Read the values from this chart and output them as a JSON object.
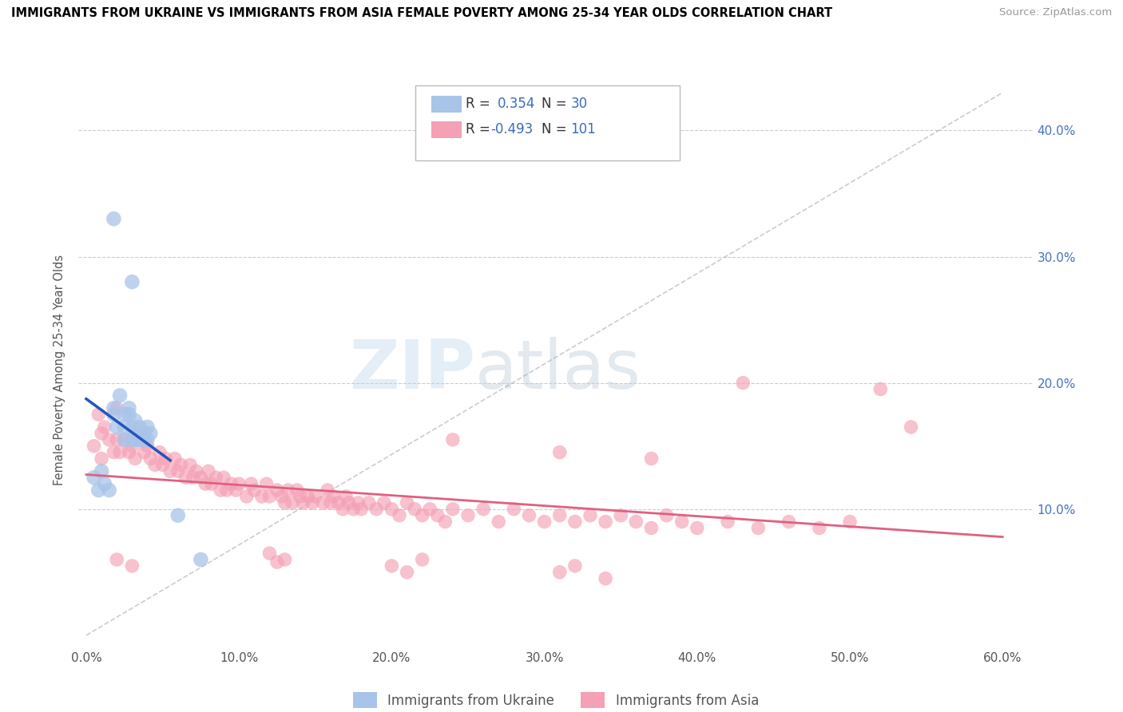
{
  "title": "IMMIGRANTS FROM UKRAINE VS IMMIGRANTS FROM ASIA FEMALE POVERTY AMONG 25-34 YEAR OLDS CORRELATION CHART",
  "source": "Source: ZipAtlas.com",
  "ylabel": "Female Poverty Among 25-34 Year Olds",
  "ytick_vals": [
    0.0,
    0.1,
    0.2,
    0.3,
    0.4
  ],
  "ytick_labels": [
    "",
    "10.0%",
    "20.0%",
    "30.0%",
    "40.0%"
  ],
  "xtick_vals": [
    0.0,
    0.1,
    0.2,
    0.3,
    0.4,
    0.5,
    0.6
  ],
  "xtick_labels": [
    "0.0%",
    "10.0%",
    "20.0%",
    "30.0%",
    "40.0%",
    "50.0%",
    "60.0%"
  ],
  "xlim": [
    -0.005,
    0.62
  ],
  "ylim": [
    -0.01,
    0.43
  ],
  "color_ukraine": "#a8c4e8",
  "color_asia": "#f4a0b5",
  "color_ukraine_line": "#2255bb",
  "color_asia_line": "#e06080",
  "color_diagonal": "#aaaaaa",
  "watermark_zip": "ZIP",
  "watermark_atlas": "atlas",
  "ukraine_scatter": [
    [
      0.005,
      0.125
    ],
    [
      0.008,
      0.115
    ],
    [
      0.01,
      0.13
    ],
    [
      0.012,
      0.12
    ],
    [
      0.015,
      0.115
    ],
    [
      0.018,
      0.18
    ],
    [
      0.018,
      0.175
    ],
    [
      0.02,
      0.165
    ],
    [
      0.022,
      0.19
    ],
    [
      0.025,
      0.175
    ],
    [
      0.025,
      0.165
    ],
    [
      0.025,
      0.155
    ],
    [
      0.028,
      0.18
    ],
    [
      0.028,
      0.175
    ],
    [
      0.03,
      0.165
    ],
    [
      0.03,
      0.155
    ],
    [
      0.032,
      0.17
    ],
    [
      0.033,
      0.16
    ],
    [
      0.033,
      0.155
    ],
    [
      0.035,
      0.165
    ],
    [
      0.035,
      0.155
    ],
    [
      0.038,
      0.16
    ],
    [
      0.038,
      0.155
    ],
    [
      0.04,
      0.165
    ],
    [
      0.04,
      0.155
    ],
    [
      0.042,
      0.16
    ],
    [
      0.03,
      0.28
    ],
    [
      0.018,
      0.33
    ],
    [
      0.06,
      0.095
    ],
    [
      0.075,
      0.06
    ]
  ],
  "asia_scatter": [
    [
      0.005,
      0.15
    ],
    [
      0.008,
      0.175
    ],
    [
      0.01,
      0.16
    ],
    [
      0.012,
      0.165
    ],
    [
      0.015,
      0.155
    ],
    [
      0.018,
      0.145
    ],
    [
      0.02,
      0.155
    ],
    [
      0.022,
      0.145
    ],
    [
      0.025,
      0.155
    ],
    [
      0.028,
      0.145
    ],
    [
      0.03,
      0.15
    ],
    [
      0.032,
      0.14
    ],
    [
      0.035,
      0.155
    ],
    [
      0.038,
      0.145
    ],
    [
      0.04,
      0.15
    ],
    [
      0.042,
      0.14
    ],
    [
      0.045,
      0.135
    ],
    [
      0.048,
      0.145
    ],
    [
      0.05,
      0.135
    ],
    [
      0.052,
      0.14
    ],
    [
      0.055,
      0.13
    ],
    [
      0.058,
      0.14
    ],
    [
      0.06,
      0.13
    ],
    [
      0.062,
      0.135
    ],
    [
      0.065,
      0.125
    ],
    [
      0.068,
      0.135
    ],
    [
      0.07,
      0.125
    ],
    [
      0.072,
      0.13
    ],
    [
      0.075,
      0.125
    ],
    [
      0.078,
      0.12
    ],
    [
      0.08,
      0.13
    ],
    [
      0.082,
      0.12
    ],
    [
      0.085,
      0.125
    ],
    [
      0.088,
      0.115
    ],
    [
      0.09,
      0.125
    ],
    [
      0.092,
      0.115
    ],
    [
      0.095,
      0.12
    ],
    [
      0.098,
      0.115
    ],
    [
      0.1,
      0.12
    ],
    [
      0.105,
      0.11
    ],
    [
      0.108,
      0.12
    ],
    [
      0.11,
      0.115
    ],
    [
      0.115,
      0.11
    ],
    [
      0.118,
      0.12
    ],
    [
      0.12,
      0.11
    ],
    [
      0.125,
      0.115
    ],
    [
      0.128,
      0.11
    ],
    [
      0.13,
      0.105
    ],
    [
      0.132,
      0.115
    ],
    [
      0.135,
      0.105
    ],
    [
      0.138,
      0.115
    ],
    [
      0.14,
      0.11
    ],
    [
      0.142,
      0.105
    ],
    [
      0.145,
      0.11
    ],
    [
      0.148,
      0.105
    ],
    [
      0.15,
      0.11
    ],
    [
      0.155,
      0.105
    ],
    [
      0.158,
      0.115
    ],
    [
      0.16,
      0.105
    ],
    [
      0.162,
      0.11
    ],
    [
      0.165,
      0.105
    ],
    [
      0.168,
      0.1
    ],
    [
      0.17,
      0.11
    ],
    [
      0.172,
      0.105
    ],
    [
      0.175,
      0.1
    ],
    [
      0.178,
      0.105
    ],
    [
      0.18,
      0.1
    ],
    [
      0.185,
      0.105
    ],
    [
      0.19,
      0.1
    ],
    [
      0.195,
      0.105
    ],
    [
      0.2,
      0.1
    ],
    [
      0.205,
      0.095
    ],
    [
      0.21,
      0.105
    ],
    [
      0.215,
      0.1
    ],
    [
      0.22,
      0.095
    ],
    [
      0.225,
      0.1
    ],
    [
      0.23,
      0.095
    ],
    [
      0.235,
      0.09
    ],
    [
      0.24,
      0.1
    ],
    [
      0.25,
      0.095
    ],
    [
      0.26,
      0.1
    ],
    [
      0.27,
      0.09
    ],
    [
      0.28,
      0.1
    ],
    [
      0.29,
      0.095
    ],
    [
      0.3,
      0.09
    ],
    [
      0.31,
      0.095
    ],
    [
      0.32,
      0.09
    ],
    [
      0.33,
      0.095
    ],
    [
      0.34,
      0.09
    ],
    [
      0.35,
      0.095
    ],
    [
      0.36,
      0.09
    ],
    [
      0.37,
      0.085
    ],
    [
      0.38,
      0.095
    ],
    [
      0.39,
      0.09
    ],
    [
      0.4,
      0.085
    ],
    [
      0.42,
      0.09
    ],
    [
      0.44,
      0.085
    ],
    [
      0.46,
      0.09
    ],
    [
      0.48,
      0.085
    ],
    [
      0.5,
      0.09
    ],
    [
      0.01,
      0.14
    ],
    [
      0.02,
      0.18
    ],
    [
      0.24,
      0.155
    ],
    [
      0.31,
      0.145
    ],
    [
      0.37,
      0.14
    ],
    [
      0.43,
      0.2
    ],
    [
      0.52,
      0.195
    ],
    [
      0.54,
      0.165
    ],
    [
      0.02,
      0.06
    ],
    [
      0.03,
      0.055
    ],
    [
      0.12,
      0.065
    ],
    [
      0.125,
      0.058
    ],
    [
      0.13,
      0.06
    ],
    [
      0.2,
      0.055
    ],
    [
      0.21,
      0.05
    ],
    [
      0.22,
      0.06
    ],
    [
      0.31,
      0.05
    ],
    [
      0.32,
      0.055
    ],
    [
      0.34,
      0.045
    ]
  ]
}
